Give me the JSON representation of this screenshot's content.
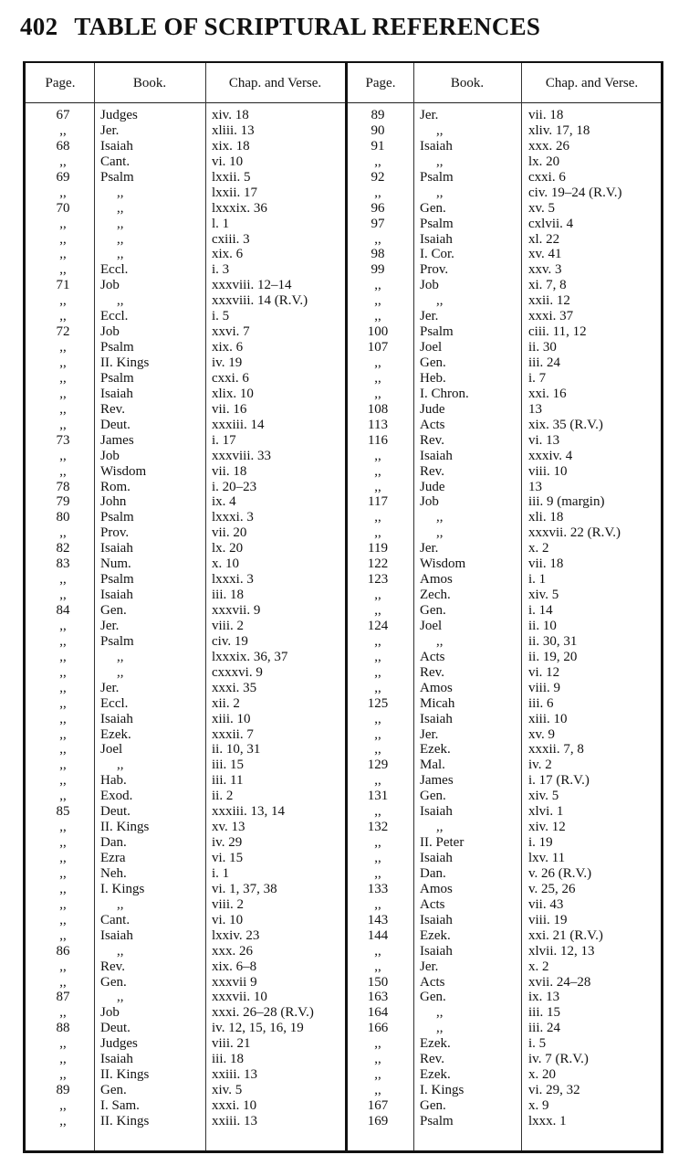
{
  "running_head": {
    "page_number": "402",
    "title": "TABLE OF SCRIPTURAL REFERENCES"
  },
  "columns": {
    "page": "Page.",
    "book": "Book.",
    "chapter_verse": "Chap. and Verse."
  },
  "left_rows": [
    [
      "67",
      "Judges",
      "xiv. 18"
    ],
    [
      ",,",
      "Jer.",
      "xliii. 13"
    ],
    [
      "68",
      "Isaiah",
      "xix. 18"
    ],
    [
      ",,",
      "Cant.",
      "vi. 10"
    ],
    [
      "69",
      "Psalm",
      "lxxii. 5"
    ],
    [
      ",,",
      ",,",
      "lxxii. 17"
    ],
    [
      "70",
      ",,",
      "lxxxix. 36"
    ],
    [
      ",,",
      ",,",
      "l. 1"
    ],
    [
      ",,",
      ",,",
      "cxiii. 3"
    ],
    [
      ",,",
      ",,",
      "xix. 6"
    ],
    [
      ",,",
      "Eccl.",
      "i. 3"
    ],
    [
      "71",
      "Job",
      "xxxviii. 12–14"
    ],
    [
      ",,",
      ",,",
      "xxxviii. 14 (R.V.)"
    ],
    [
      ",,",
      "Eccl.",
      "i. 5"
    ],
    [
      "72",
      "Job",
      "xxvi. 7"
    ],
    [
      ",,",
      "Psalm",
      "xix. 6"
    ],
    [
      ",,",
      "II. Kings",
      "iv. 19"
    ],
    [
      ",,",
      "Psalm",
      "cxxi. 6"
    ],
    [
      ",,",
      "Isaiah",
      "xlix. 10"
    ],
    [
      ",,",
      "Rev.",
      "vii. 16"
    ],
    [
      ",,",
      "Deut.",
      "xxxiii. 14"
    ],
    [
      "73",
      "James",
      "i. 17"
    ],
    [
      ",,",
      "Job",
      "xxxviii. 33"
    ],
    [
      ",,",
      "Wisdom",
      "vii. 18"
    ],
    [
      "78",
      "Rom.",
      "i. 20–23"
    ],
    [
      "79",
      "John",
      "ix. 4"
    ],
    [
      "80",
      "Psalm",
      "lxxxi. 3"
    ],
    [
      ",,",
      "Prov.",
      "vii. 20"
    ],
    [
      "82",
      "Isaiah",
      "lx. 20"
    ],
    [
      "83",
      "Num.",
      "x. 10"
    ],
    [
      ",,",
      "Psalm",
      "lxxxi. 3"
    ],
    [
      ",,",
      "Isaiah",
      "iii. 18"
    ],
    [
      "84",
      "Gen.",
      "xxxvii. 9"
    ],
    [
      ",,",
      "Jer.",
      "viii. 2"
    ],
    [
      ",,",
      "Psalm",
      "civ. 19"
    ],
    [
      ",,",
      ",,",
      "lxxxix. 36, 37"
    ],
    [
      ",,",
      ",,",
      "cxxxvi. 9"
    ],
    [
      ",,",
      "Jer.",
      "xxxi. 35"
    ],
    [
      ",,",
      "Eccl.",
      "xii. 2"
    ],
    [
      ",,",
      "Isaiah",
      "xiii. 10"
    ],
    [
      ",,",
      "Ezek.",
      "xxxii. 7"
    ],
    [
      ",,",
      "Joel",
      "ii. 10, 31"
    ],
    [
      ",,",
      ",,",
      "iii. 15"
    ],
    [
      ",,",
      "Hab.",
      "iii. 11"
    ],
    [
      ",,",
      "Exod.",
      "ii. 2"
    ],
    [
      "85",
      "Deut.",
      "xxxiii. 13, 14"
    ],
    [
      ",,",
      "II. Kings",
      "xv. 13"
    ],
    [
      ",,",
      "Dan.",
      "iv. 29"
    ],
    [
      ",,",
      "Ezra",
      "vi. 15"
    ],
    [
      ",,",
      "Neh.",
      "i. 1"
    ],
    [
      ",,",
      "I. Kings",
      "vi. 1, 37, 38"
    ],
    [
      ",,",
      ",,",
      "viii. 2"
    ],
    [
      ",,",
      "Cant.",
      "vi. 10"
    ],
    [
      ",,",
      "Isaiah",
      "lxxiv. 23"
    ],
    [
      "86",
      ",,",
      "xxx. 26"
    ],
    [
      ",,",
      "Rev.",
      "xix. 6–8"
    ],
    [
      ",,",
      "Gen.",
      "xxxvii 9"
    ],
    [
      "87",
      ",,",
      "xxxvii. 10"
    ],
    [
      ",,",
      "Job",
      "xxxi. 26–28 (R.V.)"
    ],
    [
      "88",
      "Deut.",
      "iv. 12, 15, 16, 19"
    ],
    [
      ",,",
      "Judges",
      "viii. 21"
    ],
    [
      ",,",
      "Isaiah",
      "iii. 18"
    ],
    [
      ",,",
      "II. Kings",
      "xxiii. 13"
    ],
    [
      "89",
      "Gen.",
      "xiv. 5"
    ],
    [
      ",,",
      "I. Sam.",
      "xxxi. 10"
    ],
    [
      ",,",
      "II. Kings",
      "xxiii. 13"
    ]
  ],
  "right_rows": [
    [
      "89",
      "Jer.",
      "vii. 18"
    ],
    [
      "90",
      ",,",
      "xliv. 17, 18"
    ],
    [
      "91",
      "Isaiah",
      "xxx. 26"
    ],
    [
      ",,",
      ",,",
      "lx. 20"
    ],
    [
      "92",
      "Psalm",
      "cxxi. 6"
    ],
    [
      ",,",
      ",,",
      "civ. 19–24 (R.V.)"
    ],
    [
      "96",
      "Gen.",
      "xv. 5"
    ],
    [
      "97",
      "Psalm",
      "cxlvii. 4"
    ],
    [
      ",,",
      "Isaiah",
      "xl. 22"
    ],
    [
      "98",
      "I. Cor.",
      "xv. 41"
    ],
    [
      "99",
      "Prov.",
      "xxv. 3"
    ],
    [
      ",,",
      "Job",
      "xi. 7, 8"
    ],
    [
      ",,",
      ",,",
      "xxii. 12"
    ],
    [
      ",,",
      "Jer.",
      "xxxi. 37"
    ],
    [
      "100",
      "Psalm",
      "ciii. 11, 12"
    ],
    [
      "107",
      "Joel",
      "ii. 30"
    ],
    [
      ",,",
      "Gen.",
      "iii. 24"
    ],
    [
      ",,",
      "Heb.",
      "i. 7"
    ],
    [
      ",,",
      "I. Chron.",
      "xxi. 16"
    ],
    [
      "108",
      "Jude",
      "13"
    ],
    [
      "113",
      "Acts",
      "xix. 35 (R.V.)"
    ],
    [
      "116",
      "Rev.",
      "vi. 13"
    ],
    [
      ",,",
      "Isaiah",
      "xxxiv. 4"
    ],
    [
      ",,",
      "Rev.",
      "viii. 10"
    ],
    [
      ",,",
      "Jude",
      "13"
    ],
    [
      "117",
      "Job",
      "iii. 9 (margin)"
    ],
    [
      ",,",
      ",,",
      "xli. 18"
    ],
    [
      ",,",
      ",,",
      "xxxvii. 22 (R.V.)"
    ],
    [
      "119",
      "Jer.",
      "x. 2"
    ],
    [
      "122",
      "Wisdom",
      "vii. 18"
    ],
    [
      "123",
      "Amos",
      "i. 1"
    ],
    [
      ",,",
      "Zech.",
      "xiv. 5"
    ],
    [
      ",,",
      "Gen.",
      "i. 14"
    ],
    [
      "124",
      "Joel",
      "ii. 10"
    ],
    [
      ",,",
      ",,",
      "ii. 30, 31"
    ],
    [
      ",,",
      "Acts",
      "ii. 19, 20"
    ],
    [
      ",,",
      "Rev.",
      "vi. 12"
    ],
    [
      ",,",
      "Amos",
      "viii. 9"
    ],
    [
      "125",
      "Micah",
      "iii. 6"
    ],
    [
      ",,",
      "Isaiah",
      "xiii. 10"
    ],
    [
      ",,",
      "Jer.",
      "xv. 9"
    ],
    [
      ",,",
      "Ezek.",
      "xxxii. 7, 8"
    ],
    [
      "129",
      "Mal.",
      "iv. 2"
    ],
    [
      ",,",
      "James",
      "i. 17 (R.V.)"
    ],
    [
      "131",
      "Gen.",
      "xiv. 5"
    ],
    [
      ",,",
      "Isaiah",
      "xlvi. 1"
    ],
    [
      "132",
      ",,",
      "xiv. 12"
    ],
    [
      ",,",
      "II. Peter",
      "i. 19"
    ],
    [
      ",,",
      "Isaiah",
      "lxv. 11"
    ],
    [
      ",,",
      "Dan.",
      "v. 26 (R.V.)"
    ],
    [
      "133",
      "Amos",
      "v. 25, 26"
    ],
    [
      ",,",
      "Acts",
      "vii. 43"
    ],
    [
      "143",
      "Isaiah",
      "viii. 19"
    ],
    [
      "144",
      "Ezek.",
      "xxi. 21 (R.V.)"
    ],
    [
      ",,",
      "Isaiah",
      "xlvii. 12, 13"
    ],
    [
      ",,",
      "Jer.",
      "x. 2"
    ],
    [
      "150",
      "Acts",
      "xvii. 24–28"
    ],
    [
      "163",
      "Gen.",
      "ix. 13"
    ],
    [
      "164",
      ",,",
      "iii. 15"
    ],
    [
      "166",
      ",,",
      "iii. 24"
    ],
    [
      ",,",
      "Ezek.",
      "i. 5"
    ],
    [
      ",,",
      "Rev.",
      "iv. 7 (R.V.)"
    ],
    [
      ",,",
      "Ezek.",
      "x. 20"
    ],
    [
      ",,",
      "I. Kings",
      "vi. 29, 32"
    ],
    [
      "167",
      "Gen.",
      "x. 9"
    ],
    [
      "169",
      "Psalm",
      "lxxx. 1"
    ]
  ]
}
